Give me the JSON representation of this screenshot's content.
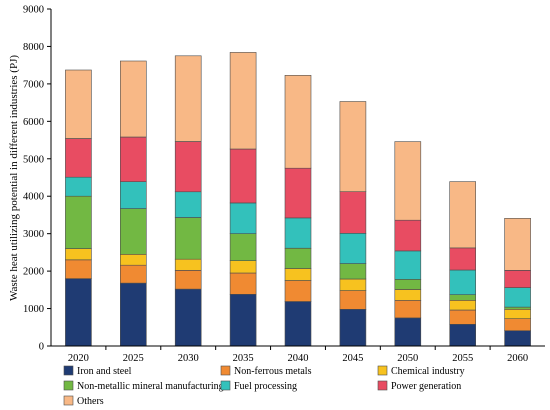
{
  "chart_data": {
    "type": "bar",
    "stacked": true,
    "categories": [
      "2020",
      "2025",
      "2030",
      "2035",
      "2040",
      "2045",
      "2050",
      "2055",
      "2060"
    ],
    "ylabel": "Waste heat  utilizing potential in different industries (PJ)",
    "ylim": [
      0,
      9000
    ],
    "yticks": [
      0,
      1000,
      2000,
      3000,
      4000,
      5000,
      6000,
      7000,
      8000,
      9000
    ],
    "grid": false,
    "legend_position": "bottom",
    "series": [
      {
        "name": "Iron and steel",
        "color": "#1f3b73",
        "values": [
          1800,
          1680,
          1520,
          1380,
          1190,
          980,
          750,
          580,
          410
        ]
      },
      {
        "name": "Non-ferrous metals",
        "color": "#f08a32",
        "values": [
          500,
          480,
          500,
          570,
          560,
          500,
          470,
          380,
          320
        ]
      },
      {
        "name": "Chemical industry",
        "color": "#f7c21f",
        "values": [
          300,
          290,
          300,
          330,
          320,
          310,
          290,
          260,
          250
        ]
      },
      {
        "name": "Non-metallic mineral manufacturing",
        "color": "#72b843",
        "values": [
          1400,
          1220,
          1110,
          720,
          540,
          410,
          270,
          150,
          60
        ]
      },
      {
        "name": "Fuel processing",
        "color": "#33c1bb",
        "values": [
          510,
          720,
          690,
          820,
          810,
          810,
          760,
          660,
          520
        ]
      },
      {
        "name": "Power generation",
        "color": "#e84c62",
        "values": [
          1030,
          1190,
          1340,
          1440,
          1330,
          1110,
          820,
          590,
          460
        ]
      },
      {
        "name": "Others",
        "color": "#f8b886",
        "values": [
          1830,
          2030,
          2290,
          2580,
          2480,
          2410,
          2100,
          1770,
          1390
        ]
      }
    ]
  }
}
